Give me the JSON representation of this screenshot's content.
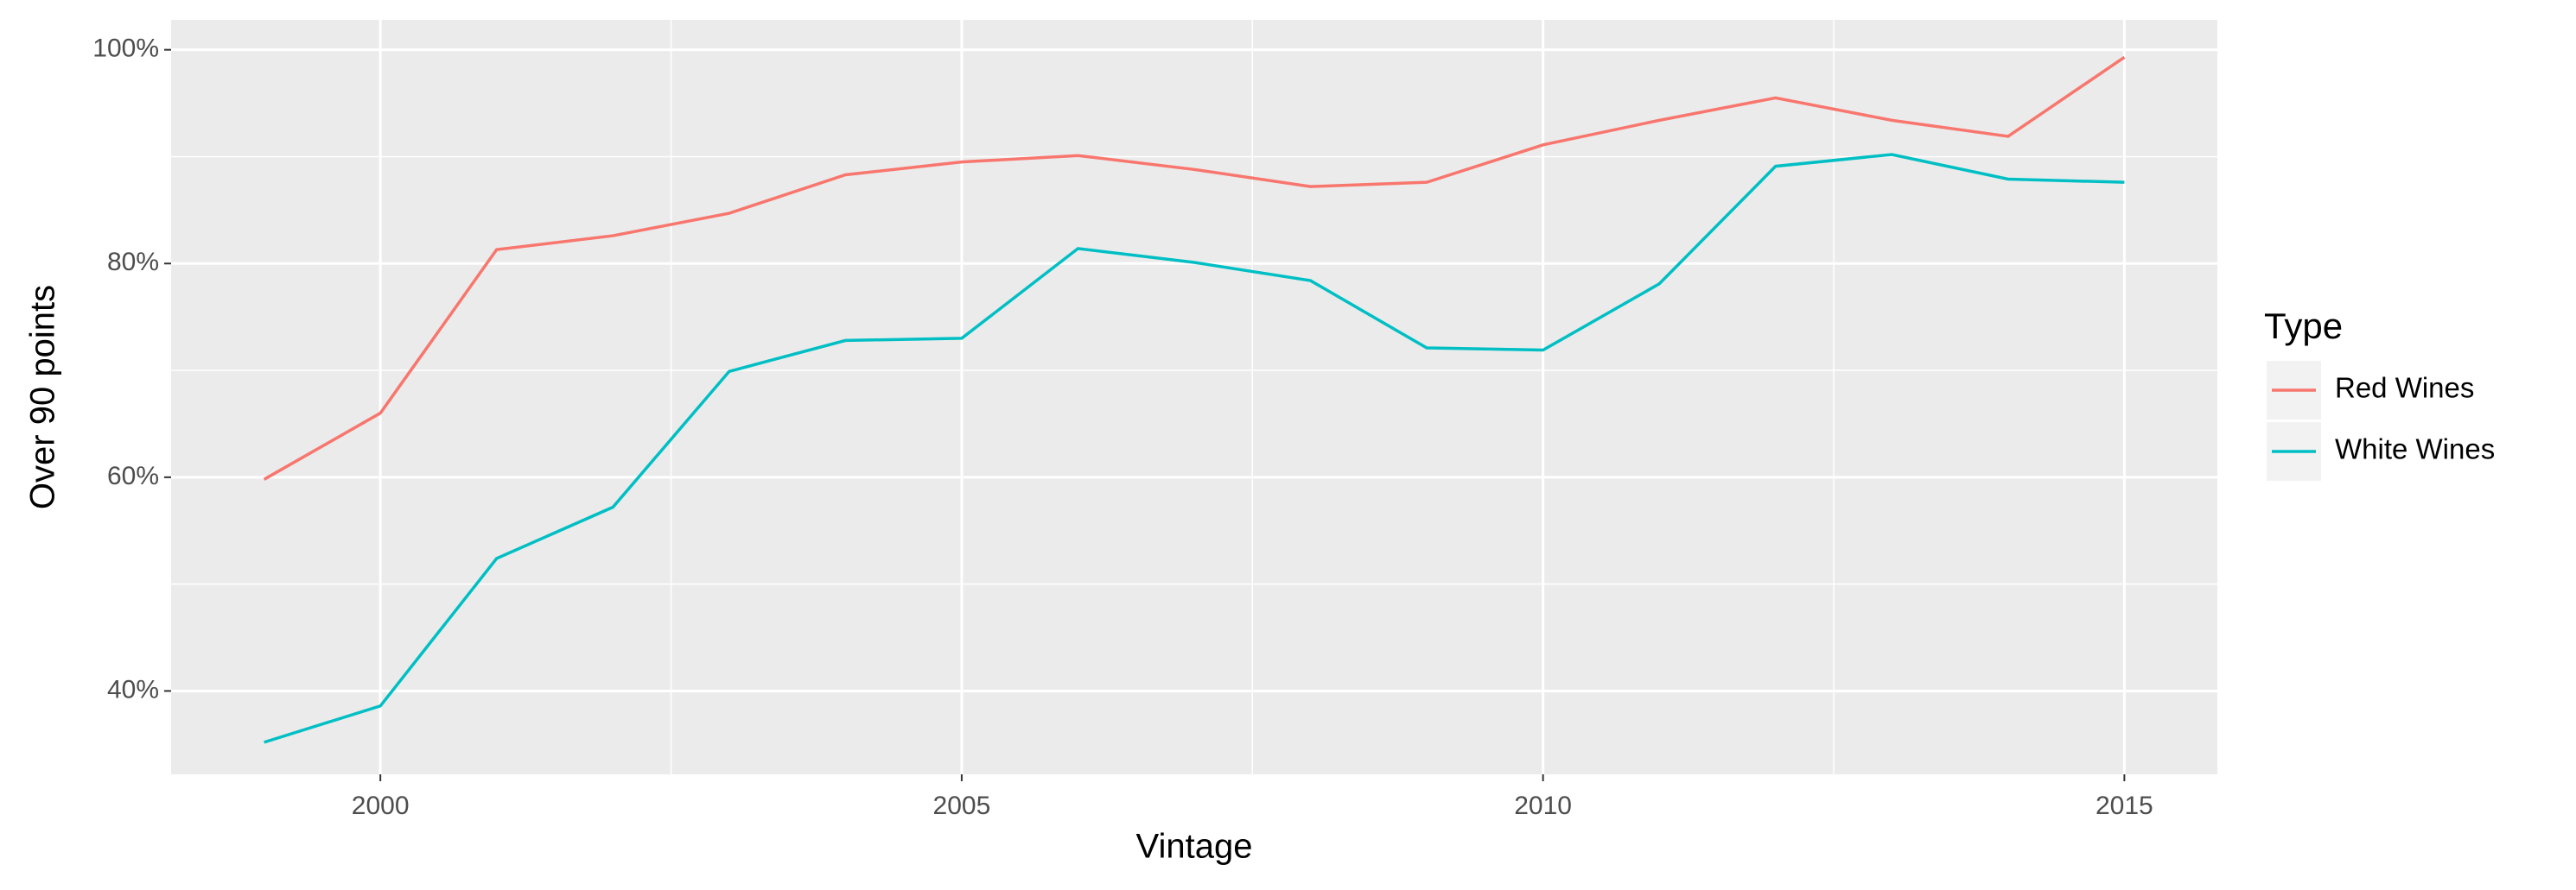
{
  "chart_data": {
    "type": "line",
    "x_label": "Vintage",
    "y_label": "Over 90 points",
    "legend_title": "Type",
    "legend": "right",
    "x": [
      1999,
      2000,
      2001,
      2002,
      2003,
      2004,
      2005,
      2006,
      2007,
      2008,
      2009,
      2010,
      2011,
      2012,
      2013,
      2014,
      2015
    ],
    "series": [
      {
        "name": "Red Wines",
        "color": "#f8766d",
        "values": [
          59.8,
          66,
          81.3,
          82.6,
          84.7,
          88.3,
          89.5,
          90.1,
          88.8,
          87.2,
          87.6,
          91.1,
          93.4,
          95.5,
          93.4,
          91.9,
          99.3
        ]
      },
      {
        "name": "White Wines",
        "color": "#00bfc4",
        "values": [
          35.2,
          38.6,
          52.4,
          57.2,
          69.9,
          72.8,
          73.0,
          81.4,
          80.1,
          78.4,
          72.1,
          71.9,
          78.1,
          89.1,
          90.2,
          87.9,
          87.6
        ]
      }
    ],
    "xlim": [
      1998.2,
      2015.8
    ],
    "xticks": [
      2000,
      2005,
      2010,
      2015
    ],
    "ylim": [
      32.2,
      102.8
    ],
    "yticks": [
      {
        "value": 40,
        "label": "40%"
      },
      {
        "value": 60,
        "label": "60%"
      },
      {
        "value": 80,
        "label": "80%"
      },
      {
        "value": 100,
        "label": "100%"
      }
    ],
    "grid": true
  }
}
